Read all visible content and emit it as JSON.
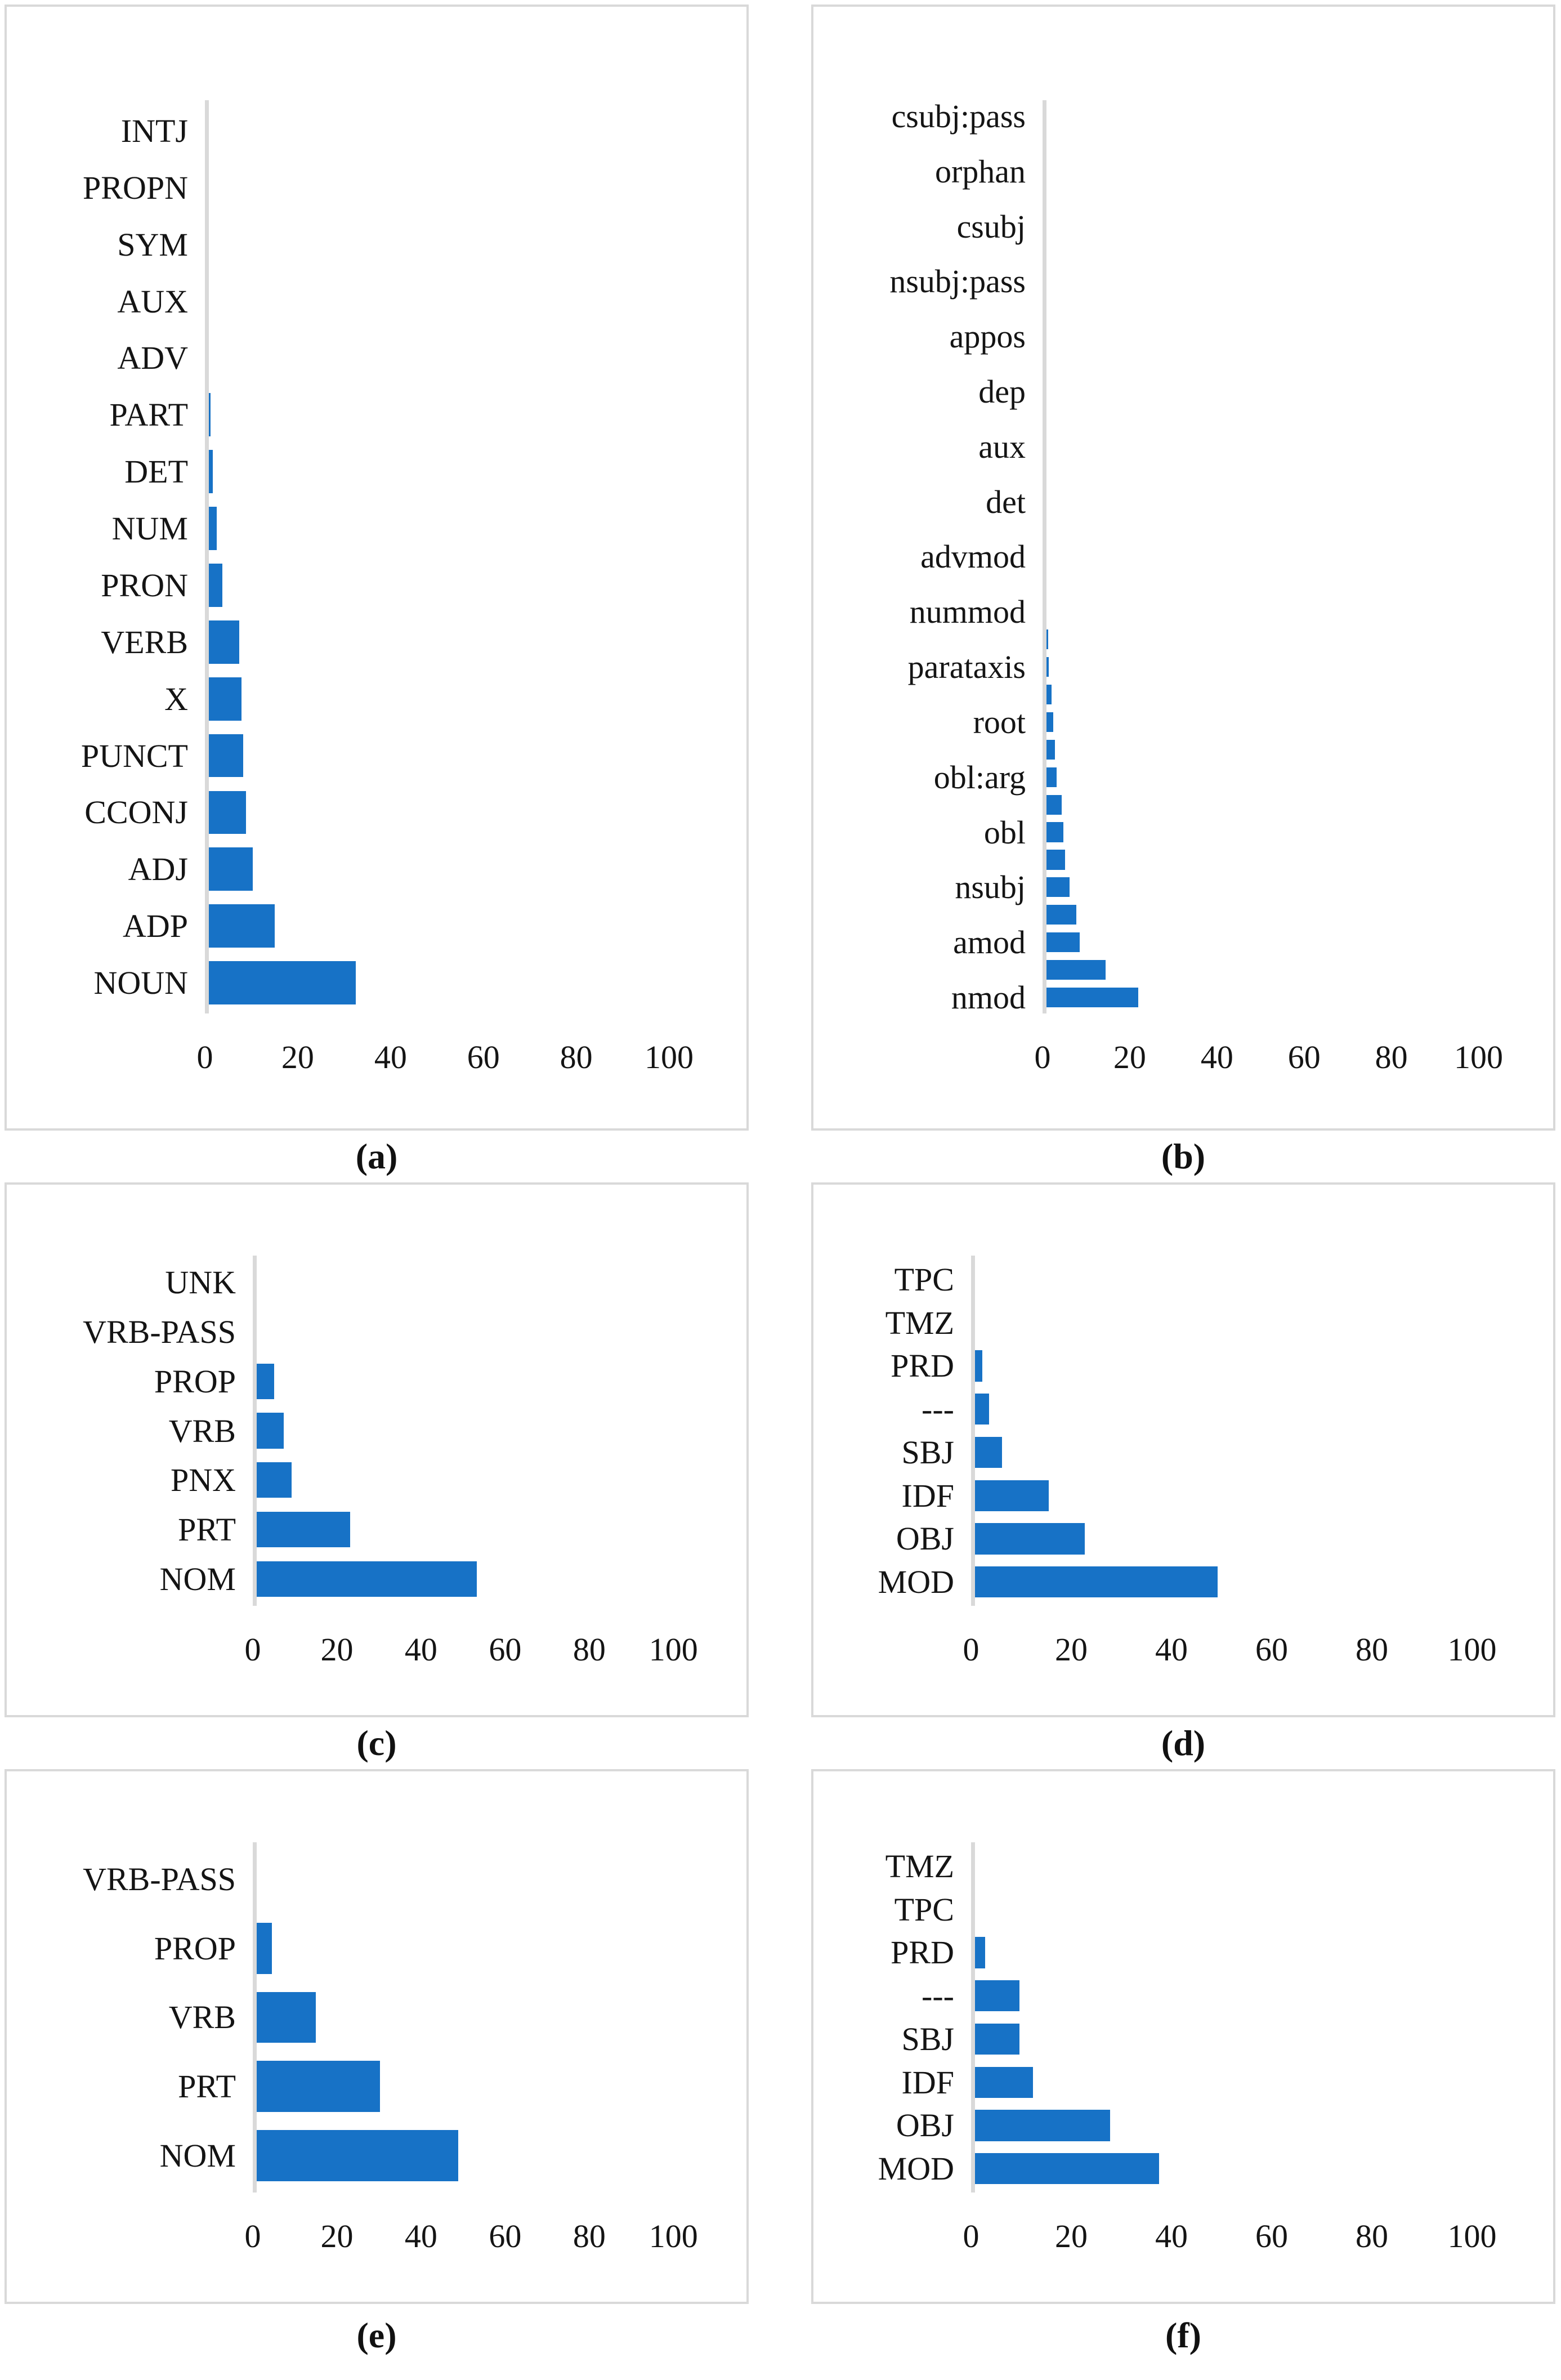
{
  "figure": {
    "bar_color": "#1772c6",
    "panel_border_color": "#d9d9d9",
    "axis_line_color": "#d9d9d9",
    "text_color": "#141414",
    "x_scale_max": 110
  },
  "chart_data": [
    {
      "type": "bar",
      "orientation": "horizontal",
      "title": "(a)",
      "xlabel": "",
      "ylabel": "",
      "xlim": [
        0,
        100
      ],
      "xticks": [
        0,
        20,
        40,
        60,
        80,
        100
      ],
      "grid": false,
      "legend": "none",
      "categories": [
        "INTJ",
        "PROPN",
        "SYM",
        "AUX",
        "ADV",
        "PART",
        "DET",
        "NUM",
        "PRON",
        "VERB",
        "X",
        "PUNCT",
        "CCONJ",
        "ADJ",
        "ADP",
        "NOUN"
      ],
      "values": [
        0,
        0,
        0,
        0,
        0,
        1.2,
        1.7,
        2.5,
        3.8,
        7.4,
        7.9,
        8.3,
        8.8,
        10.3,
        15,
        32.5
      ]
    },
    {
      "type": "bar",
      "orientation": "horizontal",
      "title": "(b)",
      "xlabel": "",
      "ylabel": "",
      "xlim": [
        0,
        100
      ],
      "xticks": [
        0,
        20,
        40,
        60,
        80,
        100
      ],
      "grid": false,
      "legend": "none",
      "note_unlabeled_rows": "every second bar has no visible axis label in the source image",
      "categories": [
        "csubj:pass",
        "",
        "orphan",
        "",
        "csubj",
        "",
        "nsubj:pass",
        "",
        "appos",
        "",
        "dep",
        "",
        "aux",
        "",
        "det",
        "",
        "advmod",
        "",
        "nummod",
        "",
        "parataxis",
        "",
        "root",
        "",
        "obl:arg",
        "",
        "obl",
        "",
        "nsubj",
        "",
        "amod",
        "",
        "nmod"
      ],
      "values": [
        0,
        0,
        0.05,
        0.05,
        0.1,
        0.1,
        0.1,
        0.15,
        0.15,
        0.2,
        0.2,
        0.25,
        0.3,
        0.35,
        0.45,
        0.55,
        0.6,
        0.7,
        0.8,
        1.3,
        1.4,
        2.1,
        2.5,
        2.8,
        3.2,
        4.4,
        4.8,
        5.2,
        6.2,
        7.8,
        8.5,
        14.5,
        22
      ]
    },
    {
      "type": "bar",
      "orientation": "horizontal",
      "title": "(c)",
      "xlabel": "",
      "ylabel": "",
      "xlim": [
        0,
        100
      ],
      "xticks": [
        0,
        20,
        40,
        60,
        80,
        100
      ],
      "grid": false,
      "legend": "none",
      "categories": [
        "UNK",
        "VRB-PASS",
        "PROP",
        "VRB",
        "PNX",
        "PRT",
        "NOM"
      ],
      "values": [
        0,
        0,
        5.1,
        7.4,
        9.2,
        23.2,
        53.3
      ]
    },
    {
      "type": "bar",
      "orientation": "horizontal",
      "title": "(d)",
      "xlabel": "",
      "ylabel": "",
      "xlim": [
        0,
        100
      ],
      "xticks": [
        0,
        20,
        40,
        60,
        80,
        100
      ],
      "grid": false,
      "legend": "none",
      "categories": [
        "TPC",
        "TMZ",
        "PRD",
        "---",
        "SBJ",
        "IDF",
        "OBJ",
        "MOD"
      ],
      "values": [
        0,
        0,
        2.2,
        3.6,
        6.2,
        15.5,
        22.7,
        49.2
      ]
    },
    {
      "type": "bar",
      "orientation": "horizontal",
      "title": "(e)",
      "xlabel": "",
      "ylabel": "",
      "xlim": [
        0,
        100
      ],
      "xticks": [
        0,
        20,
        40,
        60,
        80,
        100
      ],
      "grid": false,
      "legend": "none",
      "categories": [
        "VRB-PASS",
        "PROP",
        "VRB",
        "PRT",
        "NOM"
      ],
      "values": [
        0.6,
        4.5,
        15,
        30.2,
        48.9
      ]
    },
    {
      "type": "bar",
      "orientation": "horizontal",
      "title": "(f)",
      "xlabel": "",
      "ylabel": "",
      "xlim": [
        0,
        100
      ],
      "xticks": [
        0,
        20,
        40,
        60,
        80,
        100
      ],
      "grid": false,
      "legend": "none",
      "categories": [
        "TMZ",
        "TPC",
        "PRD",
        "---",
        "SBJ",
        "IDF",
        "OBJ",
        "MOD"
      ],
      "values": [
        0,
        0,
        2.8,
        9.7,
        9.7,
        12.4,
        27.8,
        37.5
      ]
    }
  ]
}
